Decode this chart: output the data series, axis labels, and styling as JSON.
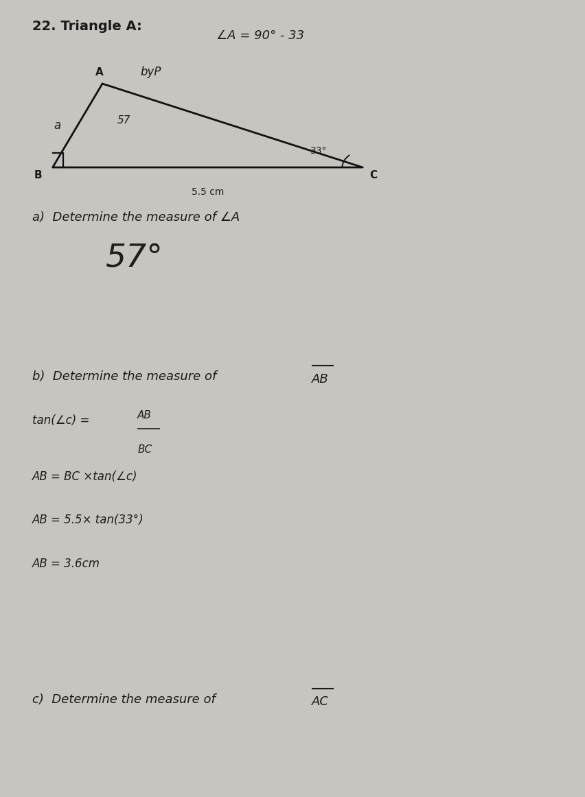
{
  "title": "22. Triangle A:",
  "title_fontsize": 14,
  "bg_color": "#c8c4bf",
  "triangle": {
    "A": [
      0.175,
      0.895
    ],
    "B": [
      0.09,
      0.79
    ],
    "C": [
      0.62,
      0.79
    ],
    "label_A": "A",
    "label_B": "B",
    "label_C": "C",
    "side_label_a": "a",
    "side_label_BC": "5.5 cm",
    "angle_C_deg": "33°",
    "angle_A_val": "57"
  },
  "note_top": "∠A = 90° - 33",
  "note_byp": "byP",
  "part_a_label": "a)  Determine the measure of ∠A",
  "part_a_answer": "57°",
  "part_b_label": "b)  Determine the measure of ",
  "part_b_overline": "AB",
  "work1": "tan(∠c) =",
  "work1_num": "AB",
  "work1_den": "BC",
  "work2": "AB = BC ×tan(∠c)",
  "work3": "AB = 5.5× tan(33°)",
  "work4": "AB = 3.6cm",
  "part_c_label": "c)  Determine the measure of ",
  "part_c_overline": "AC",
  "text_color": "#1a1a1a",
  "hw_color": "#1e1e1e"
}
